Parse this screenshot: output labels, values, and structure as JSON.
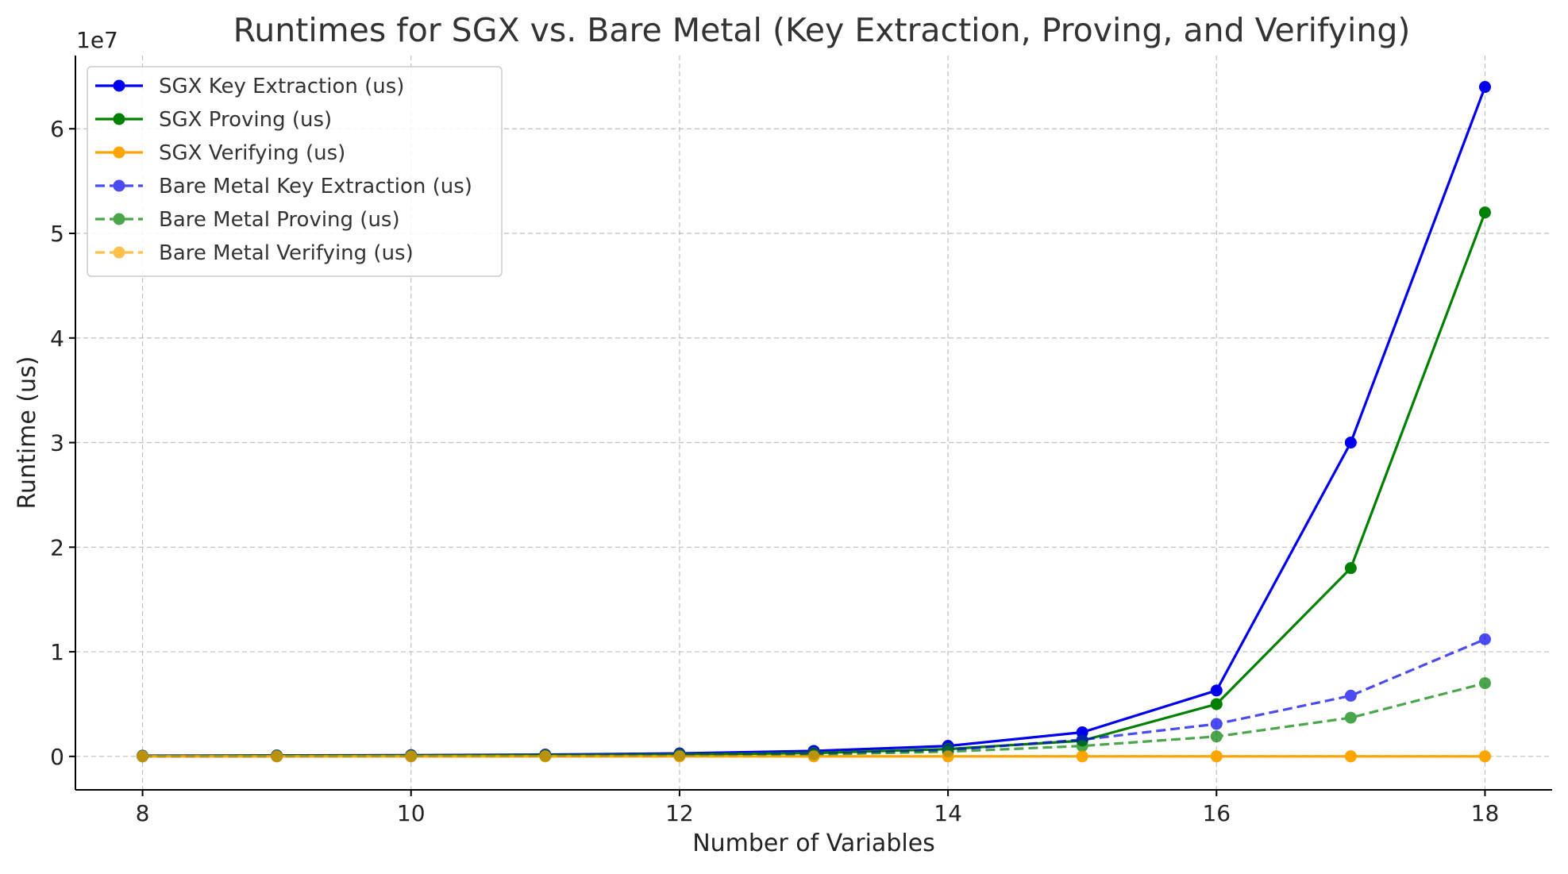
{
  "chart_data": {
    "type": "line",
    "title": "Runtimes for SGX vs. Bare Metal (Key Extraction, Proving, and Verifying)",
    "xlabel": "Number of Variables",
    "ylabel": "Runtime (us)",
    "y_offset_label": "1e7",
    "xlim": [
      7.5,
      18.5
    ],
    "ylim": [
      -3200000,
      67000000
    ],
    "x_ticks": [
      8,
      10,
      12,
      14,
      16,
      18
    ],
    "y_ticks": [
      0,
      10000000,
      20000000,
      30000000,
      40000000,
      50000000,
      60000000
    ],
    "y_tick_labels": [
      "0",
      "1",
      "2",
      "3",
      "4",
      "5",
      "6"
    ],
    "grid": true,
    "legend_position": "top-left",
    "x": [
      8,
      9,
      10,
      11,
      12,
      13,
      14,
      15,
      16,
      17,
      18
    ],
    "series": [
      {
        "name": "SGX Key Extraction (us)",
        "color": "#0000ee",
        "style": "solid",
        "alpha": 1,
        "values": [
          60000,
          90000,
          120000,
          170000,
          280000,
          520000,
          1000000,
          2300000,
          6300000,
          30000000,
          64000000
        ]
      },
      {
        "name": "SGX Proving (us)",
        "color": "#008000",
        "style": "solid",
        "alpha": 1,
        "values": [
          40000,
          60000,
          80000,
          110000,
          180000,
          320000,
          700000,
          1500000,
          5000000,
          18000000,
          52000000
        ]
      },
      {
        "name": "SGX Verifying (us)",
        "color": "#ffa500",
        "style": "solid",
        "alpha": 1,
        "values": [
          5000,
          5000,
          5000,
          5000,
          5000,
          5000,
          5000,
          5000,
          5000,
          5000,
          5000
        ]
      },
      {
        "name": "Bare Metal Key Extraction (us)",
        "color": "#0000ee",
        "style": "dashed",
        "alpha": 0.7,
        "values": [
          10000,
          20000,
          40000,
          70000,
          120000,
          250000,
          600000,
          1600000,
          3100000,
          5800000,
          11200000
        ]
      },
      {
        "name": "Bare Metal Proving (us)",
        "color": "#008000",
        "style": "dashed",
        "alpha": 0.7,
        "values": [
          8000,
          15000,
          30000,
          50000,
          90000,
          180000,
          450000,
          1000000,
          1900000,
          3700000,
          7000000
        ]
      },
      {
        "name": "Bare Metal Verifying (us)",
        "color": "#ffa500",
        "style": "dashed",
        "alpha": 0.7,
        "values": [
          3000,
          3000,
          3000,
          3000,
          3000,
          3000,
          3000,
          3000,
          3000,
          3000,
          3000
        ]
      }
    ]
  }
}
